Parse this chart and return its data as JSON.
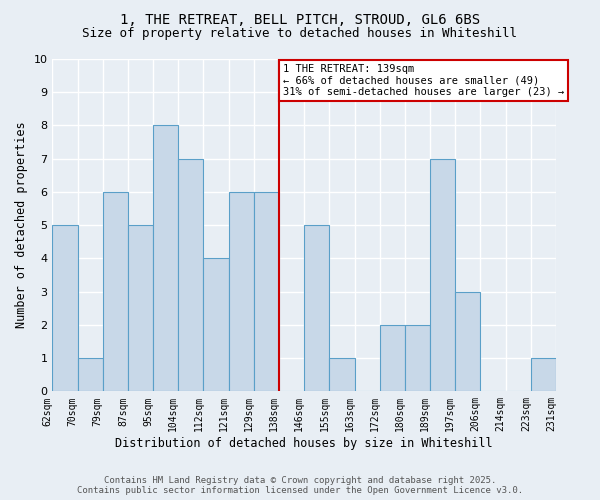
{
  "title": "1, THE RETREAT, BELL PITCH, STROUD, GL6 6BS",
  "subtitle": "Size of property relative to detached houses in Whiteshill",
  "xlabel": "Distribution of detached houses by size in Whiteshill",
  "ylabel": "Number of detached properties",
  "bin_labels": [
    "62sqm",
    "70sqm",
    "79sqm",
    "87sqm",
    "95sqm",
    "104sqm",
    "112sqm",
    "121sqm",
    "129sqm",
    "138sqm",
    "146sqm",
    "155sqm",
    "163sqm",
    "172sqm",
    "180sqm",
    "189sqm",
    "197sqm",
    "206sqm",
    "214sqm",
    "223sqm",
    "231sqm"
  ],
  "counts": [
    5,
    1,
    6,
    5,
    8,
    7,
    4,
    6,
    6,
    0,
    5,
    1,
    0,
    2,
    2,
    7,
    3,
    0,
    0,
    1
  ],
  "vline_index": 9,
  "bar_color": "#c8d8e8",
  "bar_edge_color": "#5a9fc8",
  "vline_color": "#cc0000",
  "annotation_text": "1 THE RETREAT: 139sqm\n← 66% of detached houses are smaller (49)\n31% of semi-detached houses are larger (23) →",
  "annotation_box_facecolor": "#ffffff",
  "annotation_box_edgecolor": "#cc0000",
  "ylim": [
    0,
    10
  ],
  "yticks": [
    0,
    1,
    2,
    3,
    4,
    5,
    6,
    7,
    8,
    9,
    10
  ],
  "background_color": "#e8eef4",
  "grid_color": "#ffffff",
  "footer_line1": "Contains HM Land Registry data © Crown copyright and database right 2025.",
  "footer_line2": "Contains public sector information licensed under the Open Government Licence v3.0.",
  "title_fontsize": 10,
  "subtitle_fontsize": 9,
  "tick_fontsize": 7,
  "ylabel_fontsize": 8.5,
  "xlabel_fontsize": 8.5,
  "annotation_fontsize": 7.5,
  "footer_fontsize": 6.5
}
